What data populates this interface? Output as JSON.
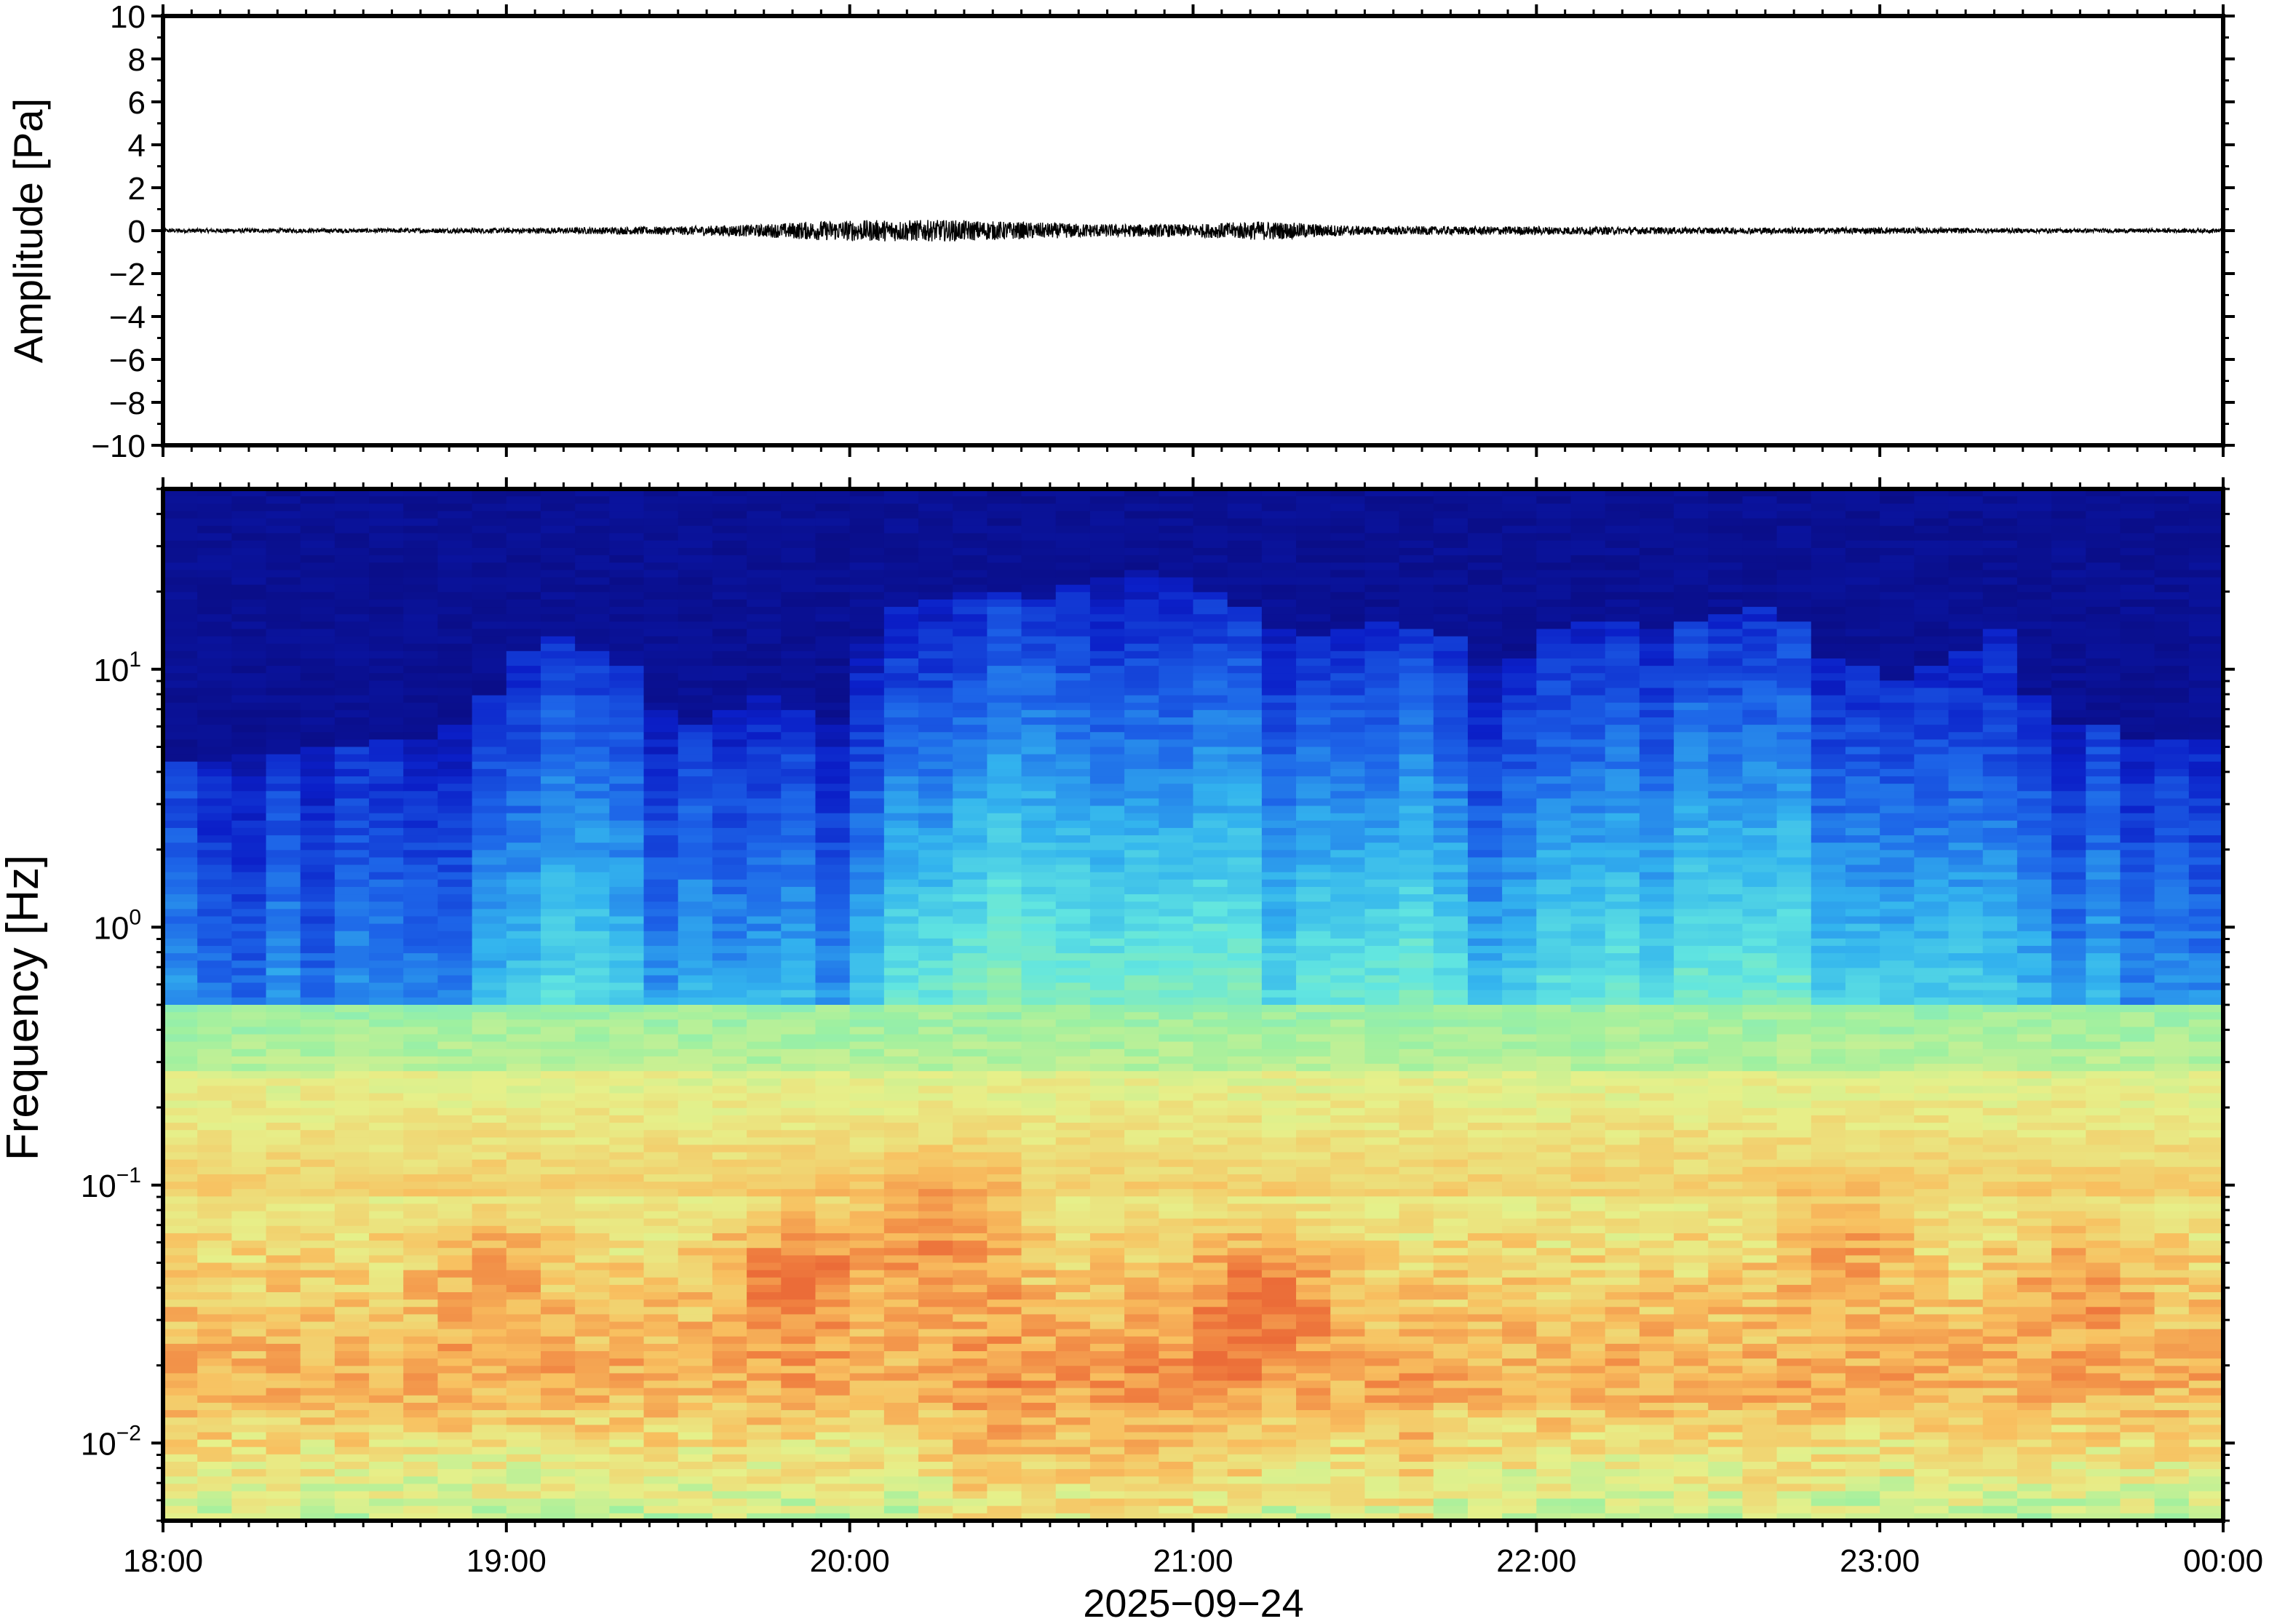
{
  "chart_data": [
    {
      "type": "line",
      "name": "waveform",
      "ylabel": "Amplitude [Pa]",
      "ylim": [
        -10,
        10
      ],
      "yticks": [
        10,
        8,
        6,
        4,
        2,
        0,
        -2,
        -4,
        -6,
        -8,
        -10
      ],
      "ytick_labels": [
        "10",
        "8",
        "6",
        "4",
        "2",
        "0",
        "−2",
        "−4",
        "−6",
        "−8",
        "−10"
      ],
      "xlim_hours": [
        18,
        24
      ],
      "grid": false,
      "series": [
        {
          "description_values": "envelope of trace amplitude (Pa) vs time (hour of day)",
          "t": [
            18.0,
            18.5,
            19.0,
            19.5,
            19.75,
            19.9,
            20.1,
            20.3,
            20.5,
            20.75,
            21.0,
            21.2,
            21.5,
            22.0,
            22.5,
            23.0,
            23.5,
            24.0
          ],
          "amp": [
            0.1,
            0.1,
            0.12,
            0.2,
            0.3,
            0.45,
            0.5,
            0.5,
            0.4,
            0.3,
            0.3,
            0.45,
            0.2,
            0.2,
            0.15,
            0.15,
            0.1,
            0.1
          ]
        }
      ]
    },
    {
      "type": "heatmap",
      "name": "spectrogram",
      "ylabel": "Frequency [Hz]",
      "xlabel": "2025−09−24",
      "xticks": [
        "18:00",
        "19:00",
        "20:00",
        "21:00",
        "22:00",
        "23:00",
        "00:00"
      ],
      "xlim_hours": [
        18,
        24
      ],
      "yscale": "log",
      "ylim": [
        0.005,
        50
      ],
      "yticks": [
        {
          "base": "10",
          "exp": "1"
        },
        {
          "base": "10",
          "exp": "0"
        },
        {
          "base": "10",
          "exp": "−1"
        },
        {
          "base": "10",
          "exp": "−2"
        }
      ],
      "colormap": "jet",
      "colors": [
        "#0a0a7a",
        "#0b1fc8",
        "#1d64e8",
        "#33b4ee",
        "#62e6e0",
        "#9ef0a0",
        "#e6f08a",
        "#f8c060",
        "#f08040",
        "#e24a2a"
      ],
      "column_count": 60,
      "intensity_by_time": [
        0.55,
        0.56,
        0.57,
        0.58,
        0.58,
        0.59,
        0.6,
        0.62,
        0.64,
        0.68,
        0.72,
        0.74,
        0.75,
        0.73,
        0.7,
        0.69,
        0.72,
        0.74,
        0.72,
        0.7,
        0.78,
        0.84,
        0.88,
        0.9,
        0.88,
        0.86,
        0.88,
        0.91,
        0.92,
        0.9,
        0.88,
        0.85,
        0.8,
        0.84,
        0.88,
        0.9,
        0.88,
        0.85,
        0.8,
        0.78,
        0.82,
        0.84,
        0.84,
        0.82,
        0.82,
        0.84,
        0.85,
        0.83,
        0.8,
        0.78,
        0.76,
        0.78,
        0.79,
        0.76,
        0.68,
        0.65,
        0.64,
        0.64,
        0.62,
        0.62
      ],
      "top_frequency_by_time_hz": [
        4.5,
        4.5,
        4.6,
        4.8,
        5,
        5,
        5.2,
        5.5,
        6,
        8,
        12,
        13,
        12,
        10,
        7,
        6,
        7,
        8,
        7,
        6,
        13,
        17,
        19,
        20,
        20,
        19,
        21,
        23,
        24,
        22,
        20,
        18,
        14,
        13,
        14,
        15,
        14,
        13,
        10,
        11,
        14,
        15,
        15,
        14,
        15,
        16,
        17,
        15,
        11,
        10,
        9,
        10,
        12,
        14,
        8,
        6,
        6,
        5.5,
        5.5,
        5.5
      ],
      "low_frequency_hotspots": [
        {
          "t": 19.85,
          "f": 0.045,
          "strength": 1.0
        },
        {
          "t": 20.25,
          "f": 0.065,
          "strength": 0.9
        },
        {
          "t": 21.2,
          "f": 0.035,
          "strength": 1.0
        },
        {
          "t": 22.9,
          "f": 0.06,
          "strength": 0.6
        },
        {
          "t": 23.6,
          "f": 0.045,
          "strength": 0.6
        },
        {
          "t": 18.95,
          "f": 0.045,
          "strength": 0.5
        }
      ]
    }
  ]
}
